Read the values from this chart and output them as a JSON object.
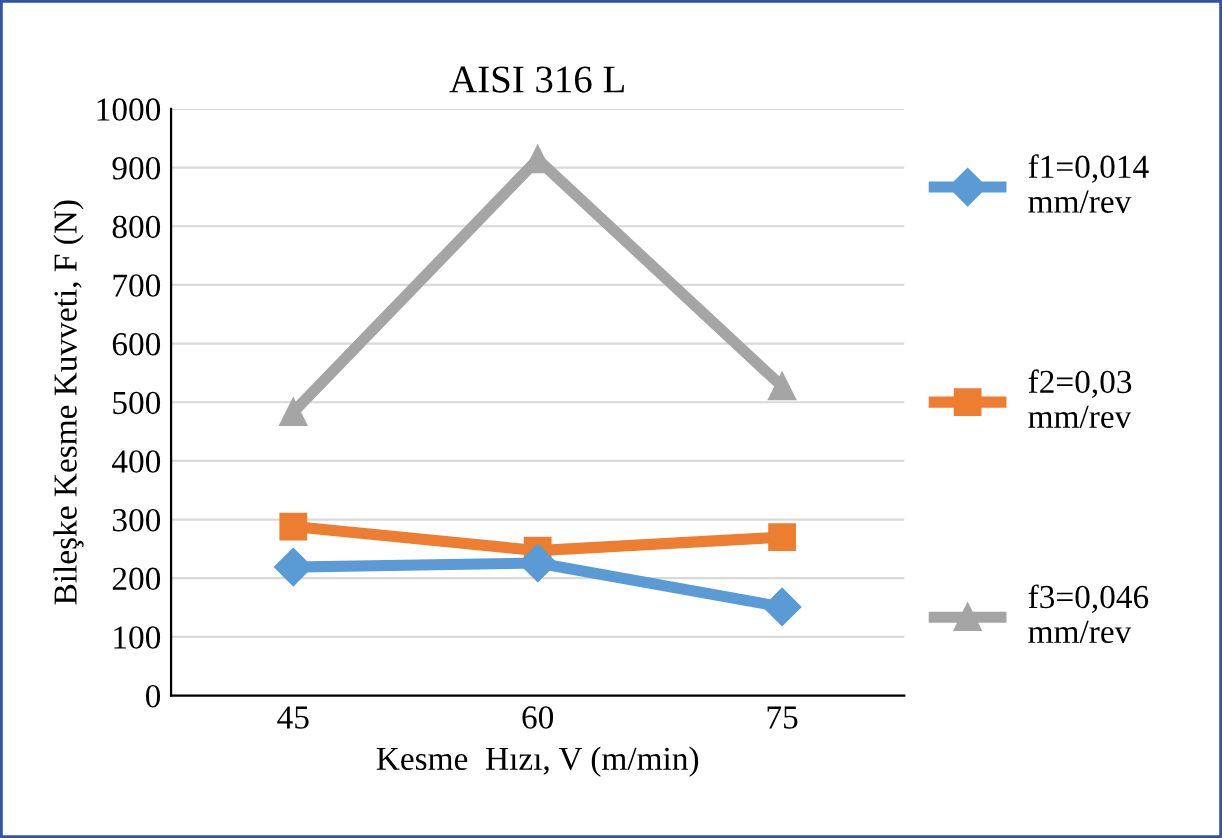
{
  "chart_data": {
    "type": "line",
    "title": "AISI 316 L",
    "xlabel": "Kesme  Hızı, V (m/min)",
    "ylabel": "Bileşke Kesme Kuvveti, F (N)",
    "categories": [
      "45",
      "60",
      "75"
    ],
    "series": [
      {
        "name": "f1=0,014\nmm/rev",
        "color": "#5b9bd5",
        "marker": "diamond",
        "values": [
          219,
          226,
          151
        ]
      },
      {
        "name": "f2=0,03\nmm/rev",
        "color": "#ed7d31",
        "marker": "square",
        "values": [
          288,
          247,
          270
        ]
      },
      {
        "name": "f3=0,046\nmm/rev",
        "color": "#a5a5a5",
        "marker": "triangle",
        "values": [
          483,
          914,
          527
        ]
      }
    ],
    "ylim": [
      0,
      1000
    ],
    "yticks": [
      0,
      100,
      200,
      300,
      400,
      500,
      600,
      700,
      800,
      900,
      1000
    ],
    "grid": "y",
    "legend": "right",
    "line_style": "solid"
  }
}
